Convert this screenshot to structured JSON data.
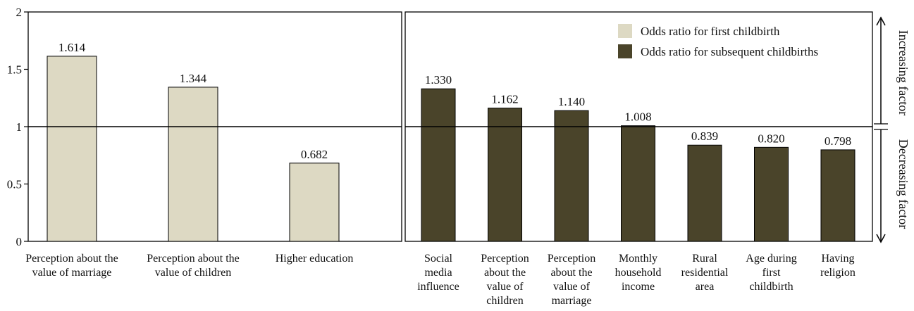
{
  "chart_data": {
    "type": "bar",
    "ylim": [
      0,
      2
    ],
    "yticks": [
      "0",
      "0.5",
      "1",
      "1.5",
      "2"
    ],
    "reference_line": 1,
    "colors": {
      "first": "#ddd9c3",
      "subsequent": "#4a442a"
    },
    "legend": {
      "placement": "top-right",
      "items": [
        "Odds ratio for first childbirth",
        "Odds ratio for subsequent childbirths"
      ]
    },
    "side_labels": {
      "top": "Increasing factor",
      "bottom": "Decreasing factor"
    },
    "panels": [
      {
        "series": "Odds ratio for first childbirth",
        "categories": [
          [
            "Perception about the",
            "value of marriage"
          ],
          [
            "Perception about the",
            "value of children"
          ],
          [
            "Higher education"
          ]
        ],
        "values": [
          1.614,
          1.344,
          0.682
        ],
        "labels": [
          "1.614",
          "1.344",
          "0.682"
        ]
      },
      {
        "series": "Odds ratio for subsequent childbirths",
        "categories": [
          [
            "Social",
            "media",
            "influence"
          ],
          [
            "Perception",
            "about the",
            "value of",
            "children"
          ],
          [
            "Perception",
            "about the",
            "value of",
            "marriage"
          ],
          [
            "Monthly",
            "household",
            "income"
          ],
          [
            "Rural",
            "residential",
            "area"
          ],
          [
            "Age during",
            "first",
            "childbirth"
          ],
          [
            "Having",
            "religion"
          ]
        ],
        "values": [
          1.33,
          1.162,
          1.14,
          1.008,
          0.839,
          0.82,
          0.798
        ],
        "labels": [
          "1.330",
          "1.162",
          "1.140",
          "1.008",
          "0.839",
          "0.820",
          "0.798"
        ]
      }
    ]
  }
}
